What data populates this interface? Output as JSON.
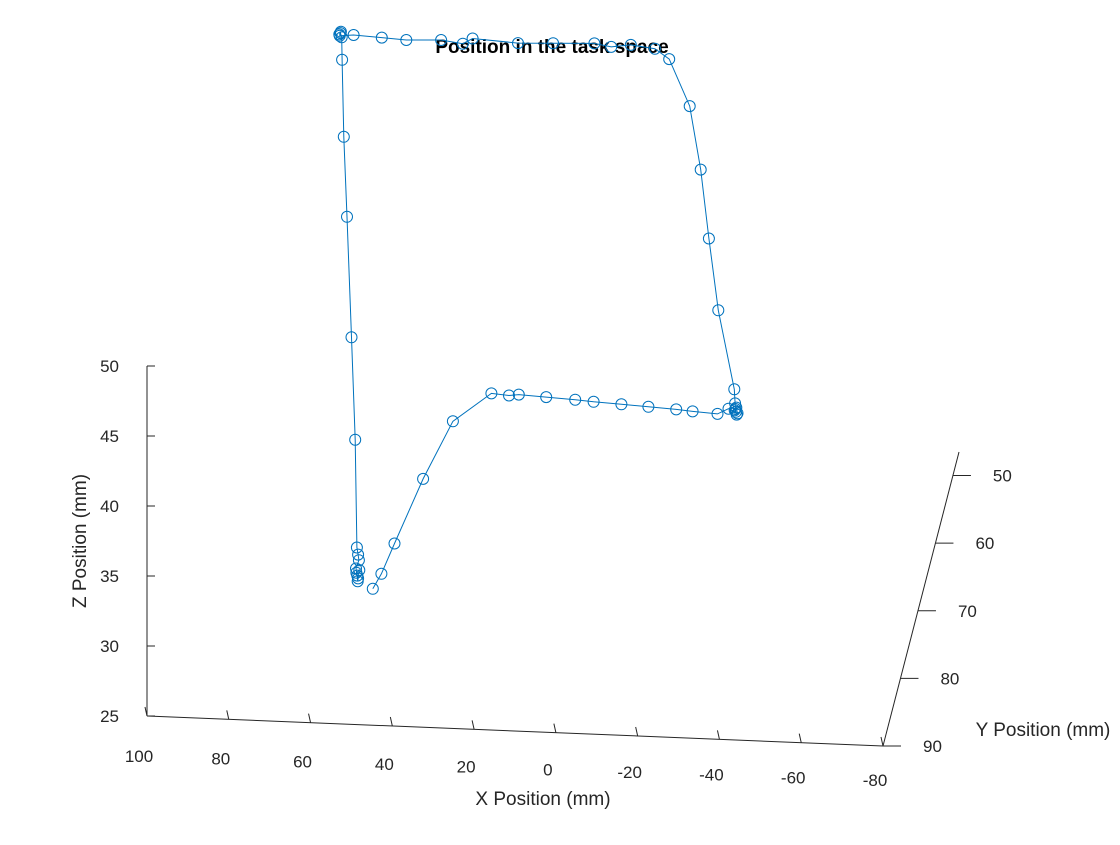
{
  "chart_data": {
    "type": "line",
    "title": "Position in the task space",
    "xlabel": "X Position (mm)",
    "ylabel": "Y Position (mm)",
    "zlabel": "Z Position (mm)",
    "view": "3d",
    "grid": false,
    "colors": {
      "series": "#0072BD",
      "axis": "#262626"
    },
    "marker": "circle",
    "x_ticks": [
      "100",
      "80",
      "60",
      "40",
      "20",
      "0",
      "-20",
      "-40",
      "-60",
      "-80"
    ],
    "y_ticks": [
      "50",
      "60",
      "70",
      "80",
      "90"
    ],
    "z_ticks": [
      "25",
      "30",
      "35",
      "40",
      "45",
      "50"
    ],
    "series": [
      {
        "points": [
          [
            49.8,
            31.2
          ],
          [
            49.6,
            31.0
          ],
          [
            50.0,
            31.4
          ],
          [
            49.3,
            31.6
          ],
          [
            49.7,
            30.8
          ],
          [
            50.1,
            31.7
          ],
          [
            49.4,
            32.3
          ],
          [
            49.6,
            32.7
          ],
          [
            49.9,
            33.2
          ],
          [
            50.3,
            40.9
          ],
          [
            51.2,
            48.2
          ],
          [
            52.3,
            56.8
          ],
          [
            53.1,
            62.5
          ],
          [
            53.5,
            68.0
          ],
          [
            53.6,
            69.6
          ],
          [
            53.9,
            69.9
          ],
          [
            54.2,
            69.8
          ],
          [
            53.8,
            70.0
          ],
          [
            54.1,
            69.7
          ],
          [
            50.7,
            69.8
          ],
          [
            43.8,
            69.7
          ],
          [
            37.8,
            69.6
          ],
          [
            29.3,
            69.7
          ],
          [
            24.0,
            69.5
          ],
          [
            21.6,
            69.9
          ],
          [
            10.5,
            69.7
          ],
          [
            1.9,
            69.8
          ],
          [
            -8.2,
            69.9
          ],
          [
            -12.3,
            69.7
          ],
          [
            -17.1,
            69.9
          ],
          [
            -23.0,
            69.7
          ],
          [
            -26.5,
            69.0
          ],
          [
            -31.5,
            65.7
          ],
          [
            -34.2,
            61.2
          ],
          [
            -36.2,
            56.3
          ],
          [
            -38.5,
            51.2
          ],
          [
            -42.4,
            45.6
          ],
          [
            -42.6,
            44.6
          ],
          [
            -42.7,
            44.2
          ],
          [
            -42.8,
            44.0
          ],
          [
            -43.0,
            43.8
          ],
          [
            -42.5,
            44.1
          ],
          [
            -42.9,
            44.3
          ],
          [
            -43.2,
            43.9
          ],
          [
            -41.0,
            44.2
          ],
          [
            -38.3,
            43.8
          ],
          [
            -32.2,
            43.9
          ],
          [
            -28.2,
            44.0
          ],
          [
            -21.4,
            44.1
          ],
          [
            -14.8,
            44.2
          ],
          [
            -8.0,
            44.3
          ],
          [
            -3.5,
            44.4
          ],
          [
            3.6,
            44.5
          ],
          [
            10.3,
            44.6
          ],
          [
            12.7,
            44.5
          ],
          [
            17.0,
            44.6
          ],
          [
            26.4,
            42.5
          ],
          [
            33.7,
            38.3
          ],
          [
            40.7,
            33.6
          ],
          [
            43.9,
            31.4
          ],
          [
            46.0,
            30.3
          ]
        ]
      }
    ]
  }
}
